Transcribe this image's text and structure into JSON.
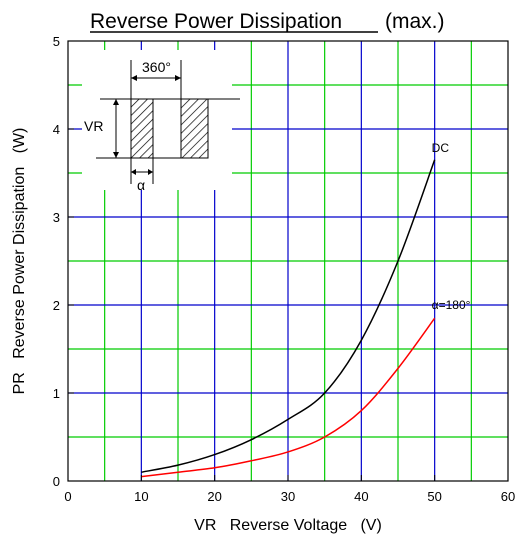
{
  "chart_data": {
    "type": "line",
    "title": "Reverse Power Dissipation",
    "title_suffix": "(max.)",
    "xlabel": "VR   Reverse Voltage   (V)",
    "ylabel": "PR   Reverse Power Dissipation   (W)",
    "xlim": [
      0,
      60
    ],
    "ylim": [
      0,
      5
    ],
    "x_ticks": [
      0,
      10,
      20,
      30,
      40,
      50,
      60
    ],
    "y_ticks": [
      0,
      1,
      2,
      3,
      4,
      5
    ],
    "x_tick_labels": [
      "0",
      "10",
      "20",
      "30",
      "40",
      "50",
      "60"
    ],
    "y_tick_labels": [
      "0",
      "1",
      "2",
      "3",
      "4",
      "5"
    ],
    "grid": true,
    "grid_colors": {
      "major": "#0000cc",
      "minor": "#00cc00"
    },
    "series": [
      {
        "name": "DC",
        "color": "#000000",
        "x": [
          10,
          15,
          20,
          25,
          30,
          35,
          40,
          45,
          50
        ],
        "y": [
          0.1,
          0.18,
          0.3,
          0.47,
          0.7,
          1.0,
          1.6,
          2.5,
          3.65
        ]
      },
      {
        "name": "α=180°",
        "color": "#ff0000",
        "x": [
          10,
          15,
          20,
          25,
          30,
          35,
          40,
          45,
          50
        ],
        "y": [
          0.05,
          0.1,
          0.15,
          0.23,
          0.33,
          0.5,
          0.8,
          1.28,
          1.85
        ]
      }
    ],
    "inset": {
      "period_label": "360°",
      "amplitude_label": "VR",
      "conduction_label": "α"
    }
  }
}
